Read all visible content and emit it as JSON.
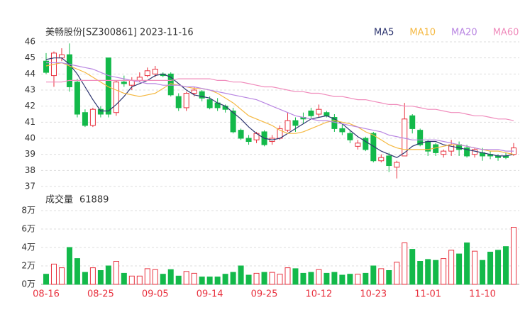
{
  "chart_data": {
    "type": "candlestick",
    "title": "美畅股份[SZ300861] 2023-11-16",
    "categories": [
      "08-16",
      null,
      null,
      null,
      null,
      null,
      null,
      "08-25",
      null,
      null,
      null,
      null,
      null,
      null,
      "09-05",
      null,
      null,
      null,
      null,
      null,
      null,
      "09-14",
      null,
      null,
      null,
      null,
      null,
      null,
      "09-25",
      null,
      null,
      null,
      null,
      null,
      null,
      "10-12",
      null,
      null,
      null,
      null,
      null,
      null,
      "10-23",
      null,
      null,
      null,
      null,
      null,
      null,
      "11-01",
      null,
      null,
      null,
      null,
      null,
      null,
      "11-10",
      null,
      null,
      null,
      null
    ],
    "open": [
      44.8,
      43.9,
      45.0,
      45.2,
      43.5,
      41.6,
      40.8,
      41.8,
      45.0,
      41.6,
      43.5,
      43.3,
      43.6,
      43.9,
      44.0,
      44.0,
      44.0,
      42.6,
      41.9,
      42.8,
      42.9,
      42.4,
      42.2,
      42.0,
      41.7,
      40.5,
      40.0,
      39.9,
      40.4,
      39.8,
      40.0,
      40.5,
      41.1,
      41.3,
      41.7,
      41.5,
      41.6,
      41.3,
      40.6,
      40.3,
      39.5,
      40.0,
      40.3,
      38.6,
      38.9,
      38.2,
      38.9,
      41.4,
      40.5,
      39.8,
      39.6,
      39.0,
      39.2,
      39.6,
      39.4,
      39.0,
      39.1,
      39.0,
      38.9,
      38.9,
      39.0
    ],
    "high": [
      45.3,
      45.4,
      45.6,
      45.9,
      43.7,
      41.8,
      41.9,
      42.0,
      45.0,
      43.6,
      43.9,
      43.8,
      44.1,
      44.4,
      44.5,
      44.1,
      44.1,
      42.8,
      42.9,
      43.2,
      43.0,
      42.6,
      42.5,
      42.1,
      41.9,
      40.6,
      40.2,
      40.4,
      40.5,
      40.2,
      40.8,
      41.6,
      41.3,
      41.6,
      41.9,
      42.1,
      41.7,
      41.5,
      40.9,
      40.5,
      39.9,
      40.1,
      40.4,
      39.0,
      39.1,
      38.6,
      42.2,
      41.5,
      40.6,
      39.9,
      39.7,
      39.3,
      39.9,
      39.8,
      39.6,
      39.4,
      39.4,
      39.2,
      39.0,
      39.1,
      39.7
    ],
    "low": [
      44.0,
      43.2,
      44.8,
      42.9,
      41.3,
      40.7,
      40.7,
      41.3,
      41.3,
      41.4,
      43.2,
      43.0,
      43.5,
      43.8,
      43.8,
      43.8,
      42.6,
      41.7,
      41.7,
      42.6,
      42.3,
      41.8,
      41.7,
      41.6,
      40.3,
      39.9,
      39.6,
      39.7,
      39.5,
      39.6,
      39.9,
      40.4,
      40.4,
      40.9,
      41.2,
      41.3,
      41.3,
      40.4,
      40.2,
      39.7,
      39.3,
      39.2,
      38.5,
      38.5,
      37.9,
      37.5,
      38.9,
      40.3,
      39.5,
      38.9,
      38.9,
      38.8,
      38.9,
      38.9,
      38.8,
      38.8,
      38.6,
      38.7,
      38.6,
      38.7,
      38.9
    ],
    "close": [
      44.1,
      45.3,
      45.2,
      43.2,
      41.5,
      40.8,
      41.8,
      41.5,
      41.5,
      43.5,
      43.4,
      43.6,
      43.8,
      44.2,
      44.3,
      43.9,
      42.7,
      41.9,
      42.8,
      43.0,
      42.5,
      41.9,
      41.9,
      41.8,
      40.4,
      40.0,
      39.8,
      40.3,
      39.6,
      40.0,
      40.6,
      41.1,
      40.8,
      41.2,
      41.4,
      41.8,
      41.4,
      40.6,
      40.4,
      39.9,
      39.7,
      39.3,
      38.6,
      38.8,
      38.3,
      38.5,
      41.2,
      40.6,
      39.6,
      39.2,
      39.1,
      39.2,
      39.6,
      39.3,
      38.9,
      39.3,
      38.9,
      38.9,
      38.8,
      38.8,
      39.4
    ],
    "up_color": "#e8313e",
    "down_color": "#13b94a",
    "series": [
      {
        "name": "MA5",
        "color": "#2e3670",
        "values": [
          44.9,
          45.0,
          45.0,
          44.6,
          44.0,
          43.2,
          42.4,
          41.7,
          41.7,
          42.1,
          42.6,
          43.2,
          43.4,
          43.6,
          43.9,
          44.0,
          43.8,
          43.4,
          43.0,
          42.7,
          42.6,
          42.5,
          42.2,
          42.0,
          41.6,
          41.2,
          40.7,
          40.3,
          40.0,
          39.9,
          40.0,
          40.3,
          40.6,
          40.9,
          41.2,
          41.3,
          41.4,
          41.2,
          40.9,
          40.5,
          40.1,
          39.8,
          39.5,
          39.2,
          39.0,
          38.8,
          39.1,
          39.5,
          39.7,
          39.8,
          39.8,
          39.6,
          39.5,
          39.4,
          39.3,
          39.2,
          39.1,
          39.0,
          38.9,
          38.9,
          39.0
        ]
      },
      {
        "name": "MA10",
        "color": "#f5b840",
        "values": [
          44.5,
          44.6,
          44.7,
          44.5,
          44.3,
          44.1,
          43.8,
          43.5,
          43.2,
          43.0,
          42.8,
          42.7,
          42.6,
          42.7,
          42.8,
          43.1,
          43.4,
          43.3,
          43.2,
          43.1,
          43.1,
          43.0,
          42.8,
          42.5,
          42.2,
          41.8,
          41.4,
          41.2,
          41.0,
          40.8,
          40.5,
          40.3,
          40.3,
          40.4,
          40.6,
          40.8,
          41.0,
          41.1,
          41.0,
          40.9,
          40.7,
          40.4,
          40.2,
          39.9,
          39.6,
          39.4,
          39.3,
          39.3,
          39.3,
          39.3,
          39.4,
          39.5,
          39.6,
          39.6,
          39.5,
          39.4,
          39.3,
          39.2,
          39.2,
          39.1,
          39.0
        ]
      },
      {
        "name": "MA20",
        "color": "#b986e2",
        "values": [
          44.7,
          44.7,
          44.7,
          44.6,
          44.5,
          44.4,
          44.3,
          44.1,
          43.9,
          43.8,
          43.7,
          43.6,
          43.5,
          43.4,
          43.4,
          43.3,
          43.3,
          43.3,
          43.2,
          43.2,
          43.1,
          43.0,
          42.9,
          42.8,
          42.7,
          42.6,
          42.5,
          42.4,
          42.2,
          42.0,
          41.8,
          41.6,
          41.4,
          41.3,
          41.2,
          41.1,
          41.1,
          41.0,
          40.9,
          40.8,
          40.7,
          40.6,
          40.5,
          40.4,
          40.2,
          40.1,
          40.0,
          39.9,
          39.9,
          39.9,
          39.9,
          39.8,
          39.7,
          39.6,
          39.5,
          39.4,
          39.3,
          39.3,
          39.3,
          39.2,
          39.2
        ]
      },
      {
        "name": "MA60",
        "color": "#f08cbc",
        "values": [
          43.5,
          43.5,
          43.5,
          43.6,
          43.6,
          43.6,
          43.6,
          43.6,
          43.6,
          43.6,
          43.6,
          43.6,
          43.6,
          43.6,
          43.6,
          43.6,
          43.6,
          43.7,
          43.7,
          43.7,
          43.7,
          43.7,
          43.6,
          43.6,
          43.5,
          43.5,
          43.4,
          43.3,
          43.2,
          43.2,
          43.1,
          43.0,
          42.9,
          42.9,
          42.8,
          42.8,
          42.7,
          42.6,
          42.6,
          42.5,
          42.4,
          42.4,
          42.3,
          42.2,
          42.1,
          42.1,
          42.0,
          42.0,
          41.9,
          41.8,
          41.8,
          41.7,
          41.6,
          41.6,
          41.5,
          41.4,
          41.4,
          41.3,
          41.2,
          41.2,
          41.1
        ]
      }
    ],
    "ylim": [
      37,
      46
    ],
    "yticks": [
      37,
      38,
      39,
      40,
      41,
      42,
      43,
      44,
      45,
      46
    ],
    "grid": true,
    "volume_label": "成交量",
    "volume": [
      11000,
      22000,
      18000,
      40000,
      28000,
      13000,
      18000,
      15000,
      20000,
      25000,
      12000,
      9000,
      9000,
      17000,
      16000,
      11000,
      16000,
      9000,
      14000,
      12000,
      8000,
      8000,
      8000,
      11000,
      13000,
      20000,
      10000,
      12000,
      13000,
      13000,
      11000,
      18000,
      17000,
      12000,
      13000,
      16000,
      12000,
      13000,
      10000,
      11000,
      11000,
      12000,
      20000,
      17000,
      15000,
      24000,
      45000,
      38000,
      25000,
      27000,
      26000,
      28000,
      37000,
      33000,
      45000,
      36000,
      26000,
      35000,
      37000,
      41000,
      61889
    ],
    "y2lim": [
      0,
      80000
    ],
    "y2ticks": [
      {
        "value": 0,
        "label": "0万"
      },
      {
        "value": 20000,
        "label": "2万"
      },
      {
        "value": 40000,
        "label": "4万"
      },
      {
        "value": 60000,
        "label": "6万"
      },
      {
        "value": 80000,
        "label": "8万"
      }
    ]
  }
}
